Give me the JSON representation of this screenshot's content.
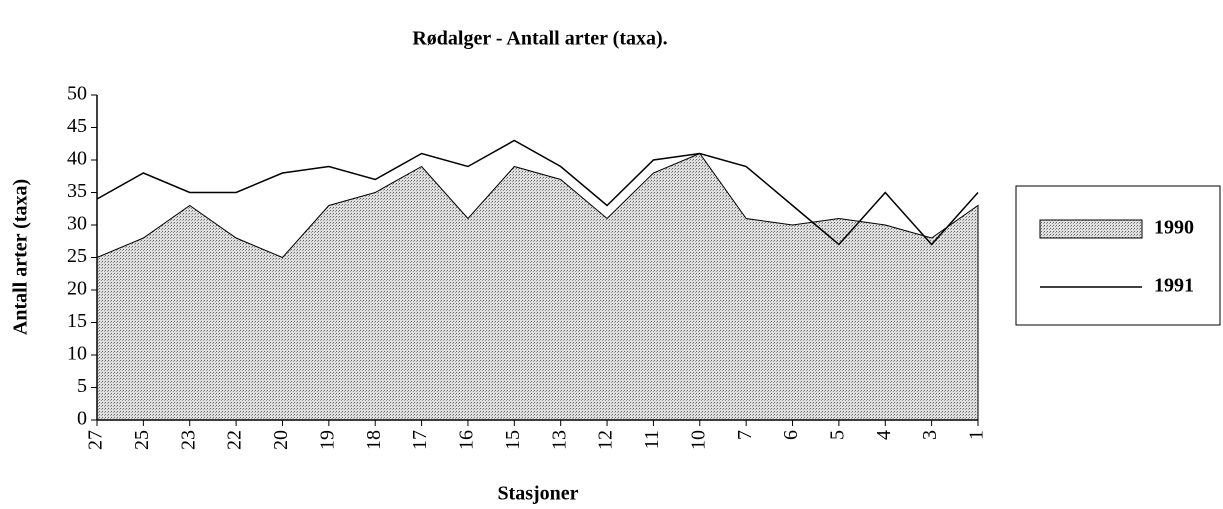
{
  "chart_data": {
    "type": "area",
    "title": "Rødalger  -  Antall arter (taxa).",
    "xlabel": "Stasjoner",
    "ylabel": "Antall arter (taxa)",
    "categories": [
      "27",
      "25",
      "23",
      "22",
      "20",
      "19",
      "18",
      "17",
      "16",
      "15",
      "13",
      "12",
      "11",
      "10",
      "7",
      "6",
      "5",
      "4",
      "3",
      "1"
    ],
    "series": [
      {
        "name": "1990",
        "kind": "area",
        "color": "#c4c4c4",
        "values": [
          25,
          28,
          33,
          28,
          25,
          33,
          35,
          39,
          31,
          39,
          37,
          31,
          38,
          41,
          31,
          30,
          31,
          30,
          28,
          33
        ]
      },
      {
        "name": "1991",
        "kind": "line",
        "color": "#000000",
        "values": [
          34,
          38,
          35,
          35,
          38,
          39,
          37,
          41,
          39,
          43,
          39,
          33,
          40,
          41,
          39,
          33,
          27,
          35,
          27,
          35
        ]
      }
    ],
    "ylim": [
      0,
      50
    ],
    "yticks": [
      0,
      5,
      10,
      15,
      20,
      25,
      30,
      35,
      40,
      45,
      50
    ],
    "legend": "right"
  }
}
